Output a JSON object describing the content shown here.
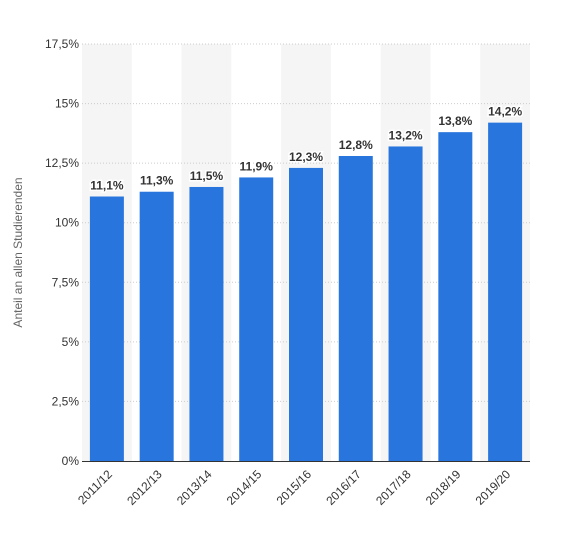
{
  "chart_data": {
    "type": "bar",
    "ylabel": "Anteil an allen Studierenden",
    "categories": [
      "2011/12",
      "2012/13",
      "2013/14",
      "2014/15",
      "2015/16",
      "2016/17",
      "2017/18",
      "2018/19",
      "2019/20"
    ],
    "values": [
      11.1,
      11.3,
      11.5,
      11.9,
      12.3,
      12.8,
      13.2,
      13.8,
      14.2
    ],
    "value_labels": [
      "11,1%",
      "11,3%",
      "11,5%",
      "11,9%",
      "12,3%",
      "12,8%",
      "13,2%",
      "13,8%",
      "14,2%"
    ],
    "ylim": [
      0,
      17.5
    ],
    "yticks": [
      0,
      2.5,
      5,
      7.5,
      10,
      12.5,
      15,
      17.5
    ],
    "ytick_labels": [
      "0%",
      "2,5%",
      "5%",
      "7,5%",
      "10%",
      "12,5%",
      "15%",
      "17,5%"
    ],
    "grid": true,
    "colors": {
      "bar": "#2876dd",
      "band": "#f5f5f5",
      "grid": "#cccccc",
      "axis": "#333333"
    }
  }
}
